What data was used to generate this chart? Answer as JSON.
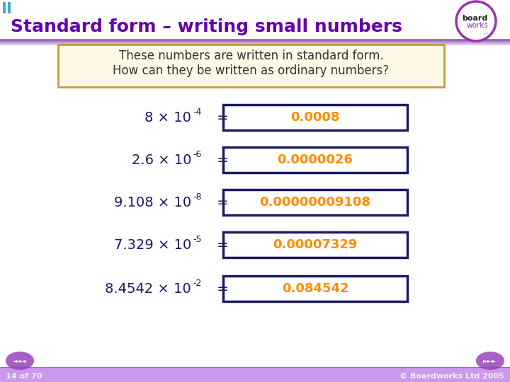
{
  "title": "Standard form – writing small numbers",
  "title_color": "#6600aa",
  "bg_color": "#ffffff",
  "slide_bg": "#ffffff",
  "instruction_text_line1": "These numbers are written in standard form.",
  "instruction_text_line2": "How can they be written as ordinary numbers?",
  "rows": [
    {
      "label": "8 × 10",
      "exp": "-4",
      "answer": "0.0008"
    },
    {
      "label": "2.6 × 10",
      "exp": "-6",
      "answer": "0.0000026"
    },
    {
      "label": "9.108 × 10",
      "exp": "-8",
      "answer": "0.00000009108"
    },
    {
      "label": "7.329 × 10",
      "exp": "-5",
      "answer": "0.00007329"
    },
    {
      "label": "8.4542 × 10",
      "exp": "-2",
      "answer": "0.084542"
    }
  ],
  "label_color": "#1a1a66",
  "answer_color": "#ff8c00",
  "box_edge_color": "#1a1a66",
  "instr_box_edge": "#cc9933",
  "instr_box_fill": "#fffae8",
  "footer_text": "© Boardworks Ltd 2005",
  "page_text": "14 of 70",
  "purple_bar_color": "#9966bb",
  "nav_btn_color": "#9944bb",
  "logo_circle_color": "#9933aa",
  "bottom_bar_color": "#cc99ee"
}
